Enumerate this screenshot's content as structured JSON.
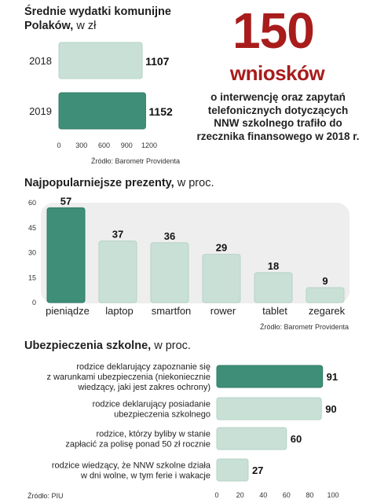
{
  "spending": {
    "title_bold": "Średnie wydatki komunijne Polaków,",
    "title_unit": " w zł",
    "source": "Źródło: Barometr Providenta"
  },
  "highlight": {
    "number": "150",
    "word": "wniosków",
    "description": "o interwencję oraz zapytań telefonicznych dotyczących NNW szkolnego trafiło do rzecznika finansowego w 2018 r."
  },
  "gifts": {
    "title_bold": "Najpopularniejsze prezenty,",
    "title_unit": " w proc.",
    "source": "Źródło: Barometr Providenta"
  },
  "insurance": {
    "title_bold": "Ubezpieczenia szkolne,",
    "title_unit": " w proc.",
    "source": "Źródło: PIU"
  },
  "colors": {
    "light_bar": "#c9e0d6",
    "dark_bar": "#3f8f78",
    "panel_bg": "#eeeeee"
  },
  "chart_data": [
    {
      "type": "bar",
      "orientation": "horizontal",
      "categories": [
        "2018",
        "2019"
      ],
      "values": [
        1107,
        1152
      ],
      "xlim": [
        0,
        1200
      ],
      "xticks": [
        0,
        300,
        600,
        900,
        1200
      ],
      "highlight_index": 1
    },
    {
      "type": "bar",
      "orientation": "vertical",
      "categories": [
        "pieniądze",
        "laptop",
        "smartfon",
        "rower",
        "tablet",
        "zegarek"
      ],
      "values": [
        57,
        37,
        36,
        29,
        18,
        9
      ],
      "ylim": [
        0,
        60
      ],
      "yticks": [
        0,
        15,
        30,
        45,
        60
      ],
      "highlight_index": 0
    },
    {
      "type": "bar",
      "orientation": "horizontal",
      "categories": [
        "rodzice deklarujący zapoznanie się\nz warunkami ubezpieczenia (niekoniecznie\nwiedzący, jaki jest zakres ochrony)",
        "rodzice deklarujący posiadanie\nubezpieczenia szkolnego",
        "rodzice, którzy byliby w stanie\nzapłacić za polisę ponad 50 zł rocznie",
        "rodzice wiedzący, że NNW szkolne działa\nw dni wolne, w tym ferie i wakacje"
      ],
      "values": [
        91,
        90,
        60,
        27
      ],
      "xlim": [
        0,
        100
      ],
      "xticks": [
        0,
        20,
        40,
        60,
        80,
        100
      ],
      "highlight_index": 0
    }
  ]
}
